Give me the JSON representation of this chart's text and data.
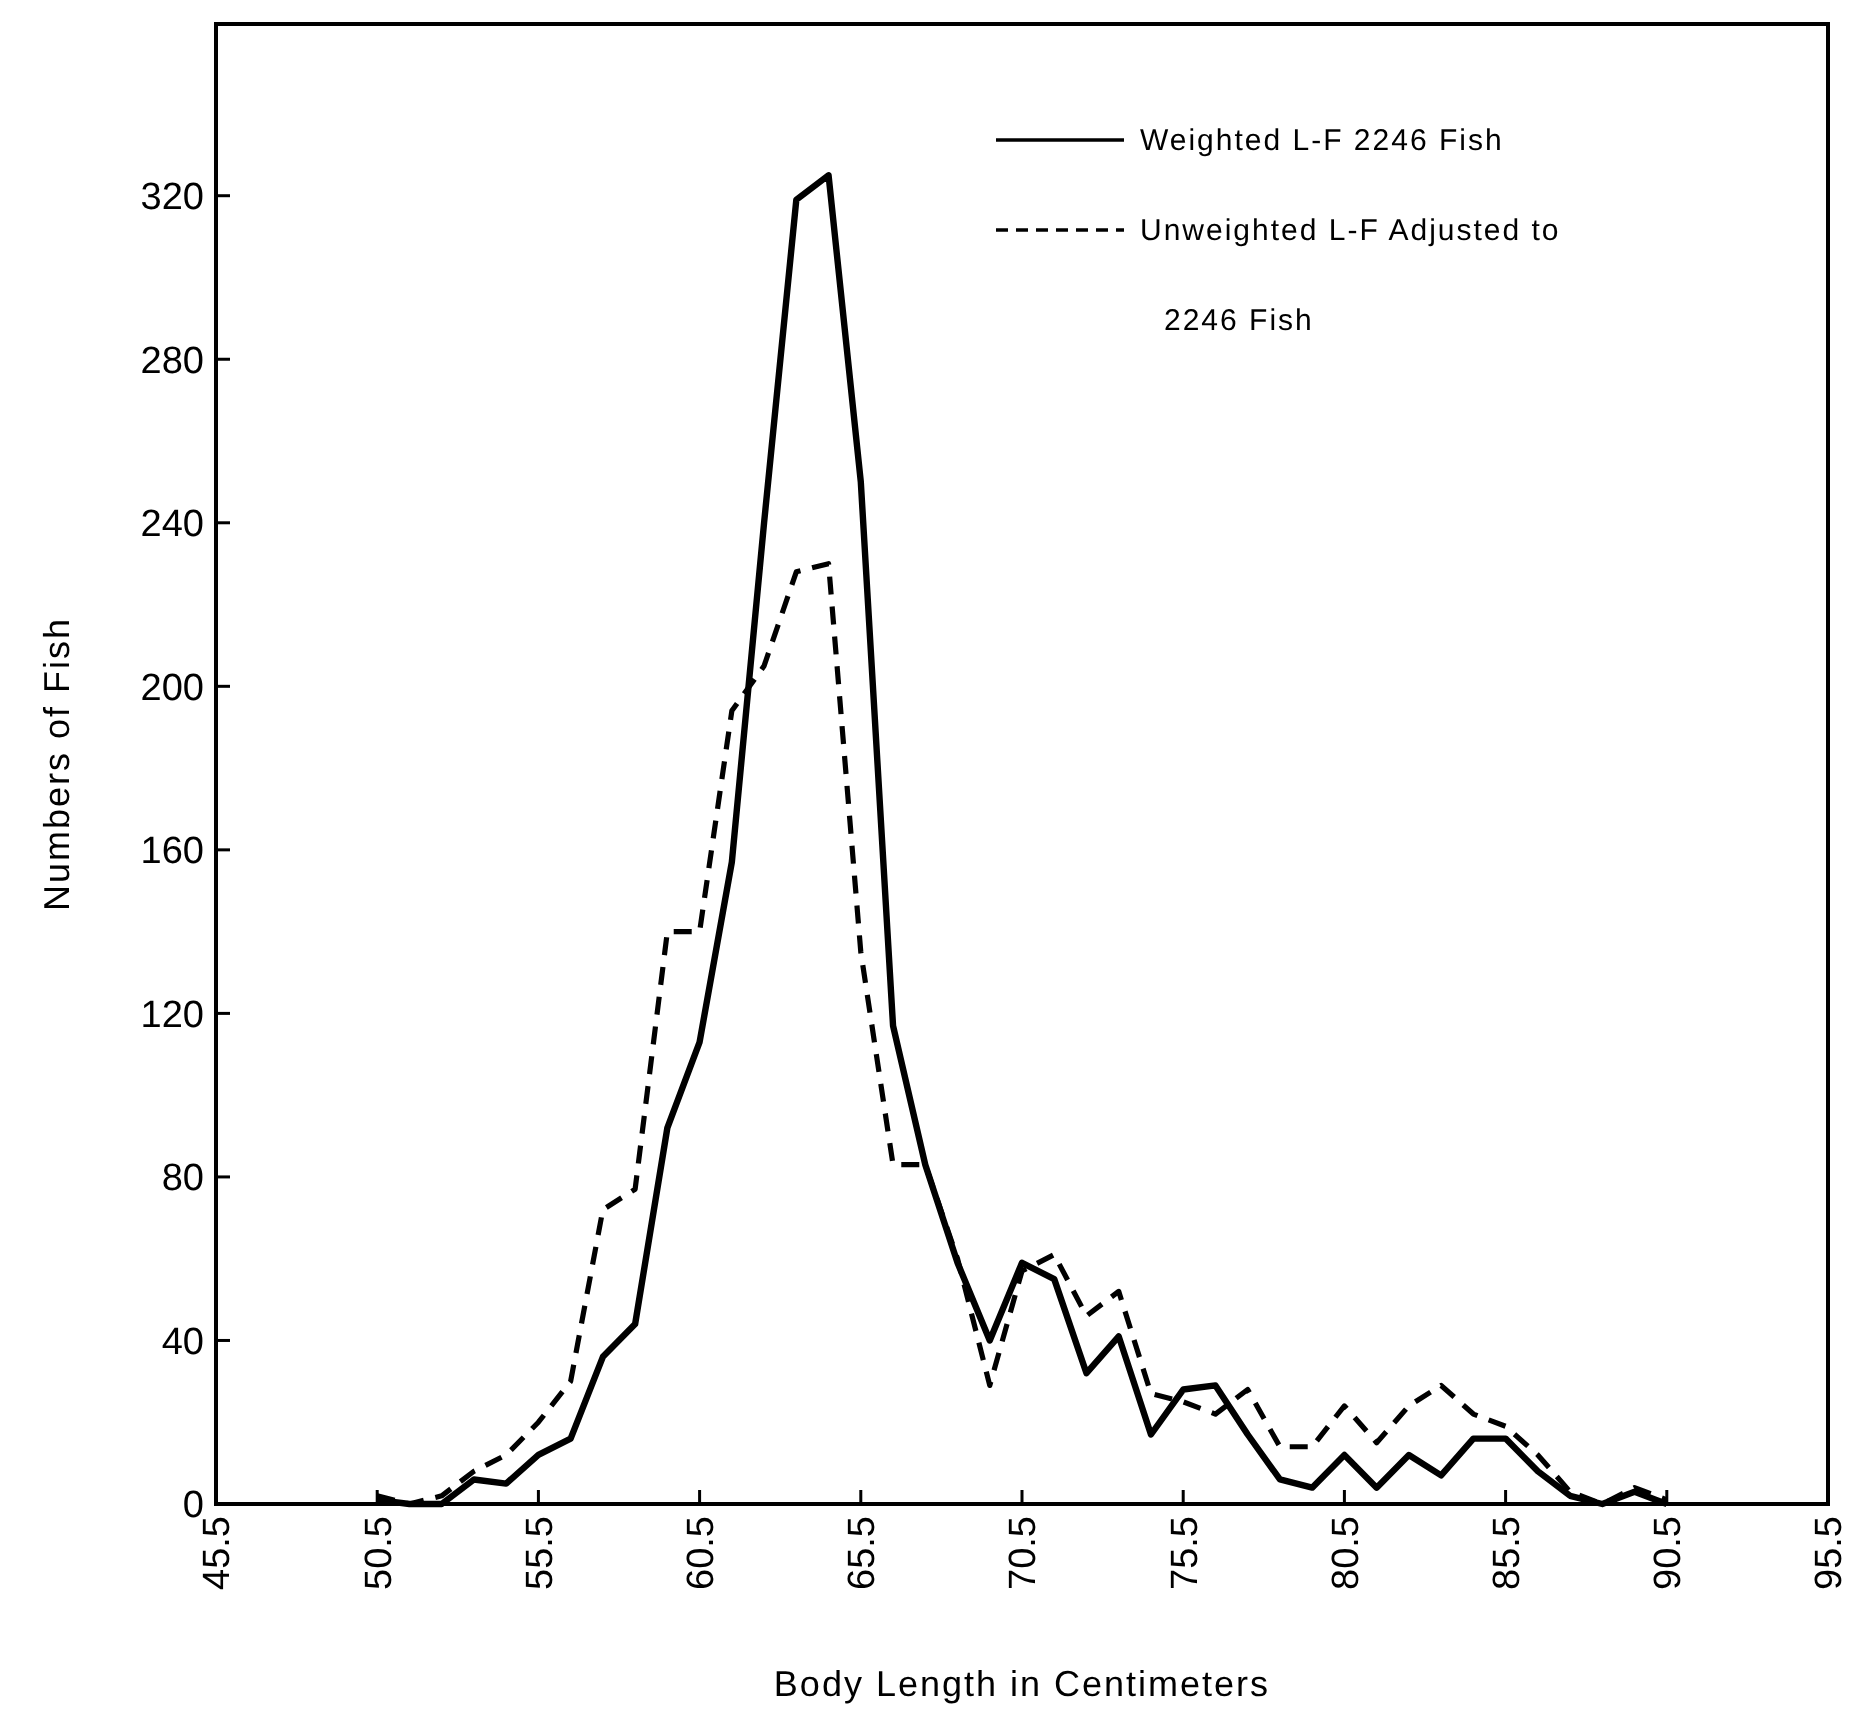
{
  "chart_data": {
    "type": "line",
    "xlabel": "Body Length in Centimeters",
    "ylabel": "Numbers of Fish",
    "x": [
      50.5,
      51.5,
      52.5,
      53.5,
      54.5,
      55.5,
      56.5,
      57.5,
      58.5,
      59.5,
      60.5,
      61.5,
      62.5,
      63.5,
      64.5,
      65.5,
      66.5,
      67.5,
      68.5,
      69.5,
      70.5,
      71.5,
      72.5,
      73.5,
      74.5,
      75.5,
      76.5,
      77.5,
      78.5,
      79.5,
      80.5,
      81.5,
      82.5,
      83.5,
      84.5,
      85.5,
      86.5,
      87.5,
      88.5,
      89.5,
      90.5
    ],
    "series": [
      {
        "name": "Weighted L-F 2246 Fish",
        "color": "#000000",
        "line_style": "solid",
        "values": [
          1,
          0,
          0,
          6,
          5,
          12,
          16,
          36,
          44,
          92,
          113,
          157,
          240,
          319,
          325,
          250,
          117,
          83,
          59,
          40,
          59,
          55,
          32,
          41,
          17,
          28,
          29,
          17,
          6,
          4,
          12,
          4,
          12,
          7,
          16,
          16,
          8,
          2,
          0,
          3,
          0
        ]
      },
      {
        "name": "Unweighted L-F Adjusted to 2246 Fish",
        "color": "#000000",
        "line_style": "dashed",
        "values": [
          2,
          0,
          2,
          8,
          12,
          20,
          30,
          72,
          77,
          140,
          140,
          194,
          205,
          228,
          230,
          135,
          83,
          83,
          60,
          29,
          57,
          61,
          46,
          52,
          27,
          25,
          22,
          28,
          14,
          14,
          24,
          15,
          24,
          29,
          22,
          19,
          12,
          3,
          0,
          4,
          1
        ]
      }
    ],
    "xlim": [
      45.5,
      95.5
    ],
    "xticks": [
      45.5,
      50.5,
      55.5,
      60.5,
      65.5,
      70.5,
      75.5,
      80.5,
      85.5,
      90.5,
      95.5
    ],
    "ylim": [
      0,
      362
    ],
    "yticks": [
      0,
      40,
      80,
      120,
      160,
      200,
      240,
      280,
      320
    ],
    "grid": false,
    "legend": "top right",
    "marker": "none"
  }
}
